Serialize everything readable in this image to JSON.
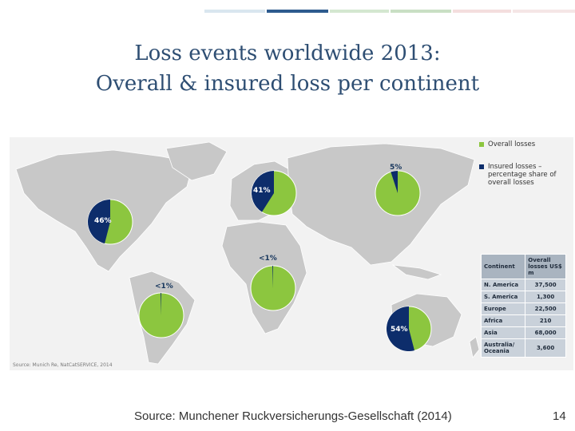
{
  "slide": {
    "title_line1": "Loss events worldwide 2013:",
    "title_line2": "Overall & insured loss per continent",
    "source": "Source: Munchener Ruckversicherungs-Gesellschaft (2014)",
    "page_number": "14",
    "accent_colors": [
      "#d9e6ef",
      "#2d5b8e",
      "#d4e7d0",
      "#c9dfc4",
      "#f4dede",
      "#f5e6e6"
    ]
  },
  "chart_data": {
    "type": "pie",
    "title": "Loss events worldwide 2013: Overall & insured loss per continent",
    "map_source": "Source: Munich Re, NatCatSERVICE, 2014",
    "legend": {
      "overall_label": "Overall losses",
      "insured_label": "Insured losses – percentage share of overall losses"
    },
    "colors": {
      "overall": "#8cc63f",
      "insured": "#0d2d6b",
      "land": "#c8c8c8",
      "ocean": "#f2f2f2"
    },
    "pies": [
      {
        "continent": "N. America",
        "insured_pct": 46,
        "label": "46%"
      },
      {
        "continent": "Europe",
        "insured_pct": 41,
        "label": "41%"
      },
      {
        "continent": "Asia",
        "insured_pct": 5,
        "label": "5%"
      },
      {
        "continent": "Africa",
        "insured_pct": 0.5,
        "label": "<1%"
      },
      {
        "continent": "S. America",
        "insured_pct": 0.5,
        "label": "<1%"
      },
      {
        "continent": "Australia/Oceania",
        "insured_pct": 54,
        "label": "54%"
      }
    ],
    "table": {
      "headers": [
        "Continent",
        "Overall losses US$ m"
      ],
      "rows": [
        {
          "continent": "N. America",
          "overall_losses": "37,500"
        },
        {
          "continent": "S. America",
          "overall_losses": "1,300"
        },
        {
          "continent": "Europe",
          "overall_losses": "22,500"
        },
        {
          "continent": "Africa",
          "overall_losses": "210"
        },
        {
          "continent": "Asia",
          "overall_losses": "68,000"
        },
        {
          "continent": "Australia/ Oceania",
          "overall_losses": "3,600"
        }
      ]
    }
  }
}
